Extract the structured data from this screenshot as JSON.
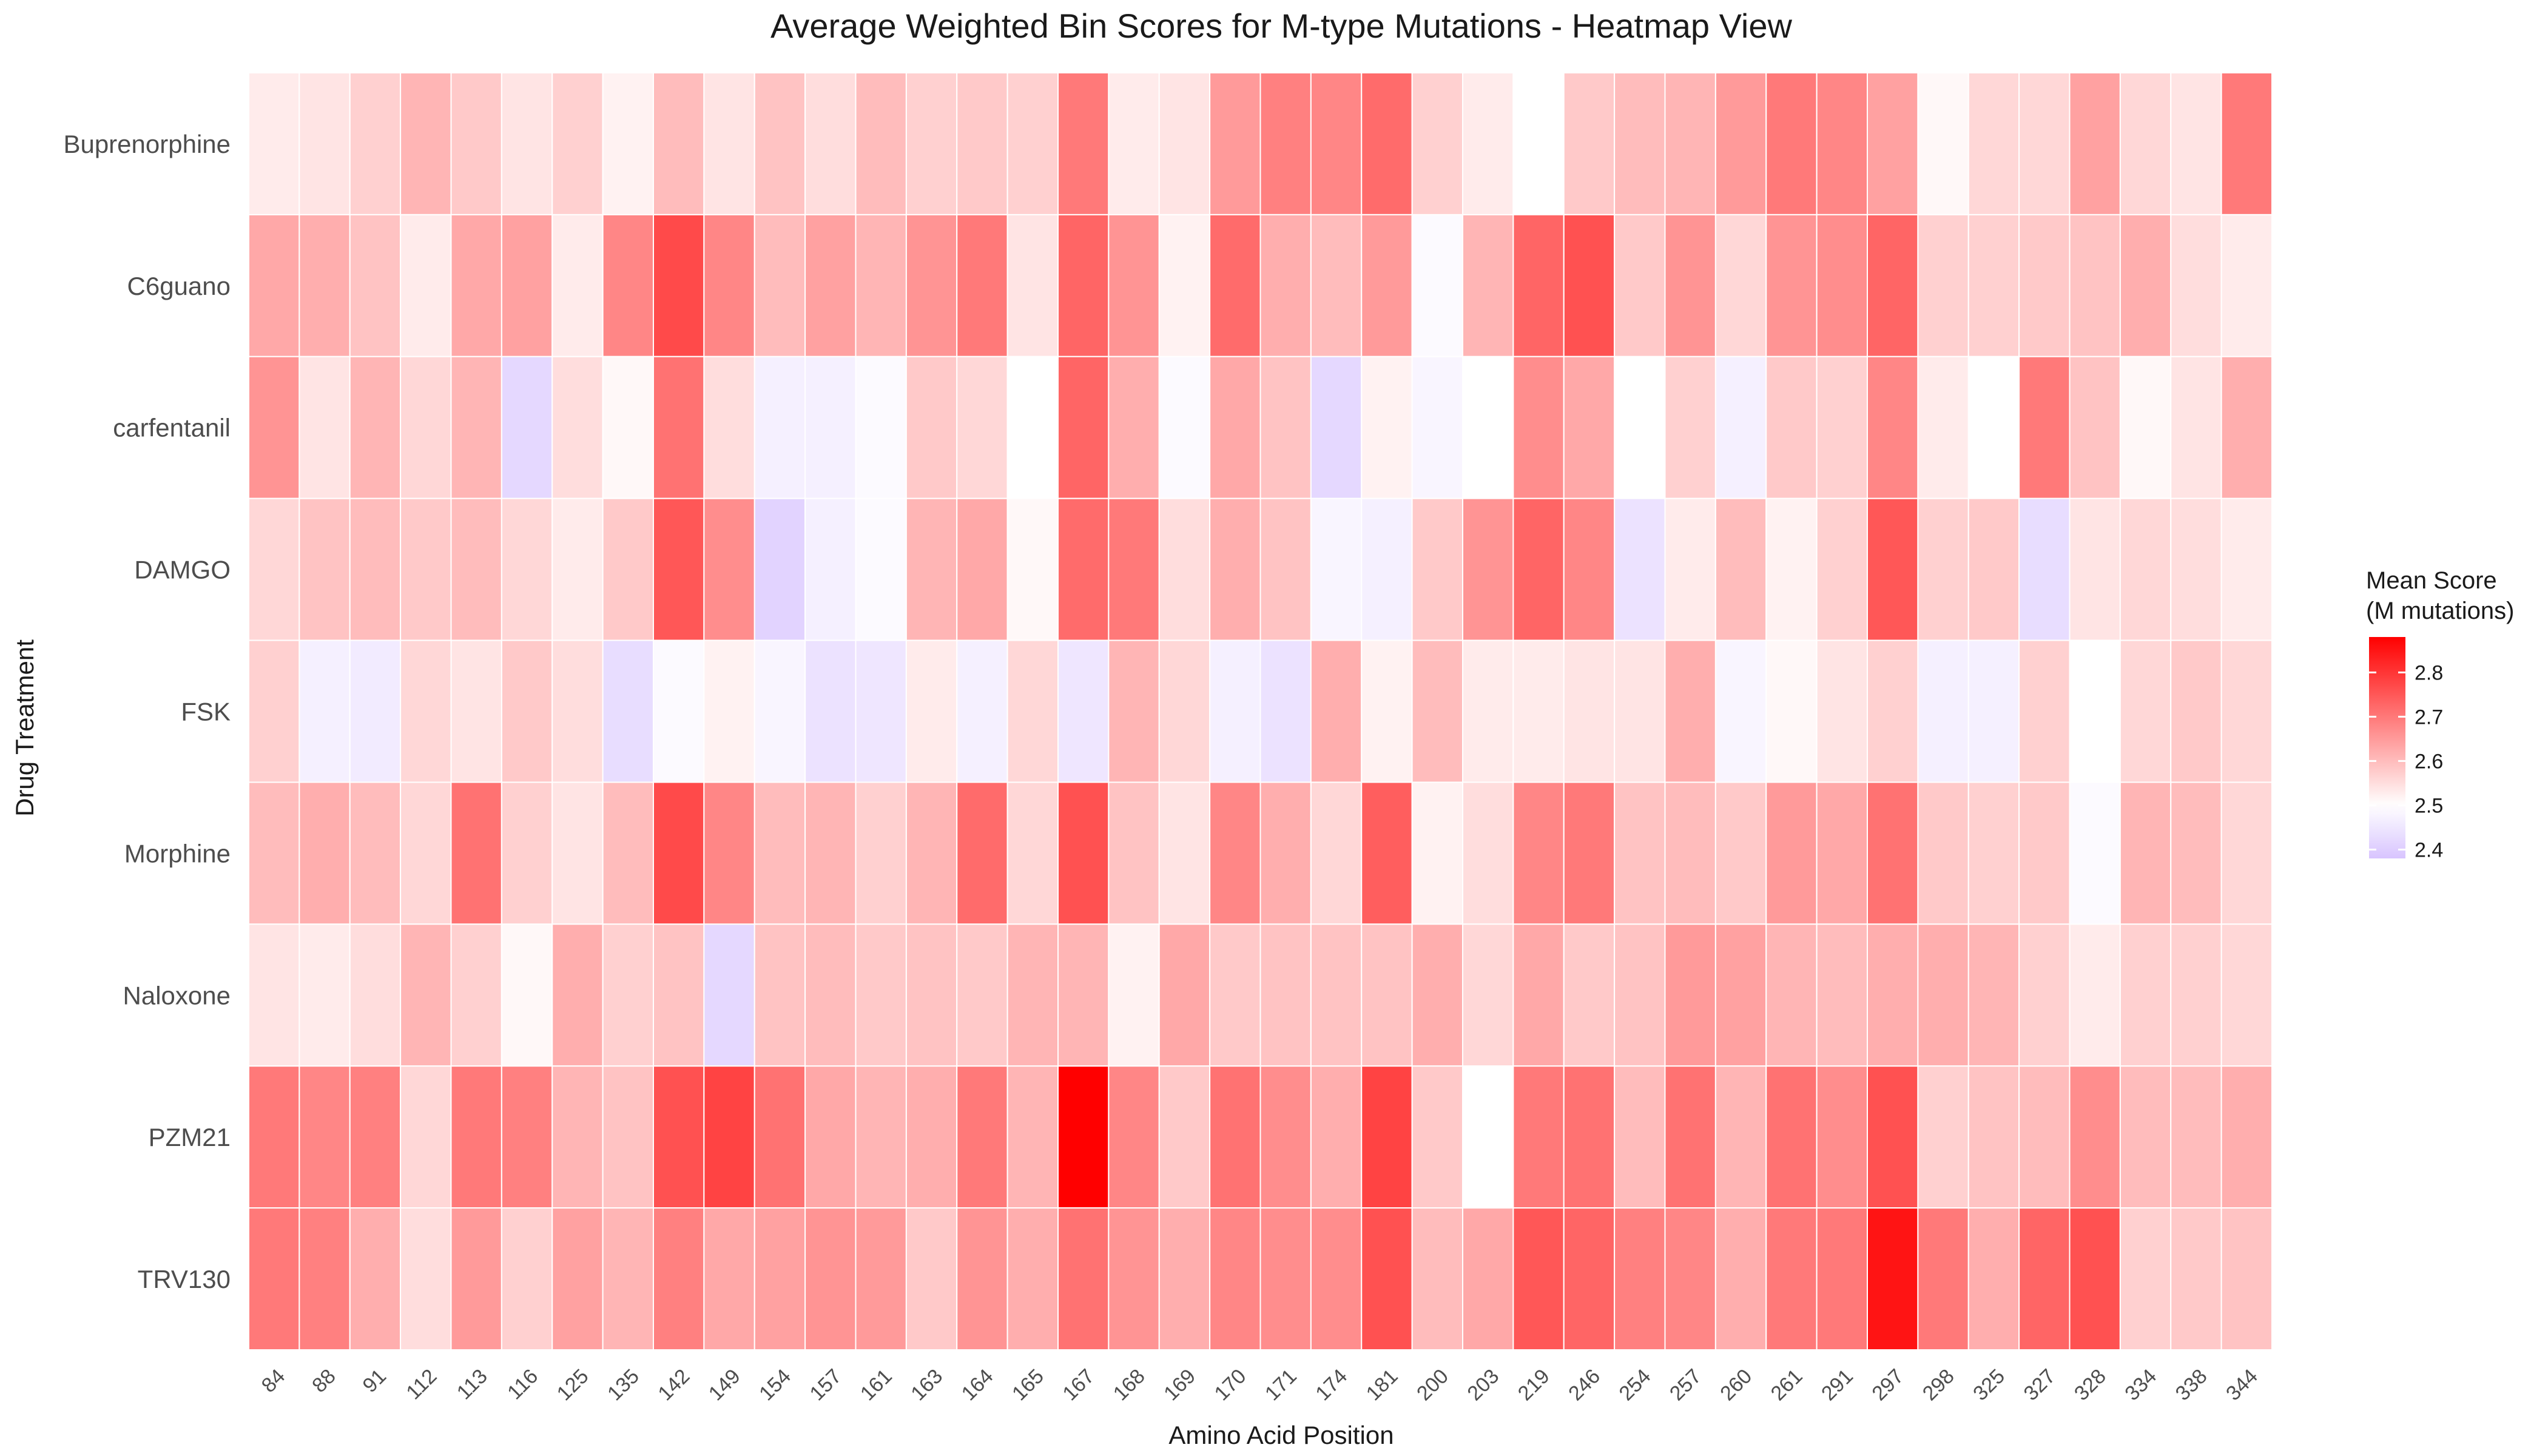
{
  "chart_data": {
    "type": "heatmap",
    "title": "Average Weighted Bin Scores for M-type Mutations - Heatmap View",
    "xlabel": "Amino Acid Position",
    "ylabel": "Drug Treatment",
    "rows": [
      "Buprenorphine",
      "C6guano",
      "carfentanil",
      "DAMGO",
      "FSK",
      "Morphine",
      "Naloxone",
      "PZM21",
      "TRV130"
    ],
    "columns": [
      "84",
      "88",
      "91",
      "112",
      "113",
      "116",
      "125",
      "135",
      "142",
      "149",
      "154",
      "157",
      "161",
      "163",
      "164",
      "165",
      "167",
      "168",
      "169",
      "170",
      "171",
      "174",
      "181",
      "200",
      "203",
      "219",
      "246",
      "254",
      "257",
      "260",
      "261",
      "291",
      "297",
      "298",
      "325",
      "327",
      "328",
      "334",
      "338",
      "344"
    ],
    "values": [
      [
        2.53,
        2.54,
        2.57,
        2.61,
        2.58,
        2.54,
        2.57,
        2.52,
        2.6,
        2.54,
        2.59,
        2.55,
        2.6,
        2.57,
        2.58,
        2.57,
        2.7,
        2.53,
        2.54,
        2.65,
        2.69,
        2.68,
        2.72,
        2.57,
        2.53,
        null,
        2.58,
        2.6,
        2.61,
        2.65,
        2.7,
        2.68,
        2.64,
        2.51,
        2.56,
        2.56,
        2.64,
        2.56,
        2.54,
        2.7
      ],
      [
        2.63,
        2.62,
        2.59,
        2.53,
        2.63,
        2.64,
        2.53,
        2.68,
        2.77,
        2.68,
        2.6,
        2.64,
        2.61,
        2.66,
        2.7,
        2.54,
        2.73,
        2.66,
        2.52,
        2.72,
        2.62,
        2.6,
        2.65,
        2.49,
        2.61,
        2.73,
        2.76,
        2.58,
        2.66,
        2.56,
        2.66,
        2.67,
        2.73,
        2.57,
        2.57,
        2.58,
        2.59,
        2.62,
        2.55,
        2.53
      ],
      [
        2.66,
        2.54,
        2.61,
        2.56,
        2.61,
        2.42,
        2.55,
        2.51,
        2.71,
        2.55,
        2.47,
        2.47,
        2.49,
        2.58,
        2.56,
        2.5,
        2.73,
        2.62,
        2.49,
        2.63,
        2.59,
        2.42,
        2.52,
        2.48,
        2.5,
        2.67,
        2.63,
        2.5,
        2.57,
        2.47,
        2.58,
        2.57,
        2.68,
        2.53,
        2.5,
        2.7,
        2.59,
        2.51,
        2.54,
        2.62
      ],
      [
        2.56,
        2.59,
        2.6,
        2.58,
        2.6,
        2.56,
        2.53,
        2.58,
        2.75,
        2.67,
        2.41,
        2.47,
        2.49,
        2.61,
        2.63,
        2.51,
        2.72,
        2.7,
        2.55,
        2.62,
        2.59,
        2.48,
        2.47,
        2.58,
        2.66,
        2.73,
        2.68,
        2.44,
        2.53,
        2.6,
        2.52,
        2.57,
        2.75,
        2.57,
        2.58,
        2.43,
        2.54,
        2.56,
        2.55,
        2.53
      ],
      [
        2.57,
        2.47,
        2.46,
        2.56,
        2.54,
        2.58,
        2.55,
        2.43,
        2.49,
        2.52,
        2.48,
        2.44,
        2.45,
        2.53,
        2.47,
        2.56,
        2.45,
        2.61,
        2.56,
        2.47,
        2.44,
        2.62,
        2.52,
        2.6,
        2.53,
        2.53,
        2.54,
        2.54,
        2.62,
        2.48,
        2.51,
        2.54,
        2.57,
        2.47,
        2.47,
        2.57,
        2.5,
        2.56,
        2.58,
        2.56
      ],
      [
        2.6,
        2.62,
        2.6,
        2.56,
        2.71,
        2.57,
        2.54,
        2.6,
        2.77,
        2.68,
        2.6,
        2.61,
        2.57,
        2.61,
        2.72,
        2.56,
        2.76,
        2.59,
        2.54,
        2.68,
        2.62,
        2.56,
        2.74,
        2.52,
        2.55,
        2.68,
        2.7,
        2.59,
        2.6,
        2.58,
        2.65,
        2.63,
        2.71,
        2.58,
        2.57,
        2.58,
        2.49,
        2.61,
        2.6,
        2.56
      ],
      [
        2.54,
        2.53,
        2.55,
        2.61,
        2.57,
        2.51,
        2.62,
        2.57,
        2.59,
        2.42,
        2.59,
        2.6,
        2.58,
        2.59,
        2.58,
        2.61,
        2.61,
        2.52,
        2.63,
        2.58,
        2.59,
        2.59,
        2.59,
        2.62,
        2.56,
        2.63,
        2.58,
        2.59,
        2.65,
        2.64,
        2.61,
        2.6,
        2.62,
        2.62,
        2.61,
        2.57,
        2.53,
        2.57,
        2.57,
        2.56
      ],
      [
        2.7,
        2.68,
        2.69,
        2.56,
        2.7,
        2.69,
        2.61,
        2.59,
        2.76,
        2.78,
        2.71,
        2.63,
        2.61,
        2.62,
        2.7,
        2.61,
        2.88,
        2.68,
        2.58,
        2.71,
        2.67,
        2.62,
        2.78,
        2.58,
        2.5,
        2.7,
        2.71,
        2.6,
        2.71,
        2.61,
        2.71,
        2.67,
        2.76,
        2.57,
        2.59,
        2.6,
        2.67,
        2.6,
        2.6,
        2.62
      ],
      [
        2.7,
        2.69,
        2.62,
        2.55,
        2.65,
        2.57,
        2.64,
        2.61,
        2.69,
        2.63,
        2.64,
        2.66,
        2.65,
        2.58,
        2.66,
        2.62,
        2.71,
        2.66,
        2.62,
        2.68,
        2.67,
        2.67,
        2.76,
        2.6,
        2.63,
        2.75,
        2.73,
        2.69,
        2.68,
        2.62,
        2.7,
        2.7,
        2.85,
        2.7,
        2.62,
        2.73,
        2.76,
        2.57,
        2.58,
        2.59
      ]
    ],
    "legend": {
      "title_line1": "Mean Score",
      "title_line2": "(M mutations)",
      "ticks": [
        "2.4",
        "2.5",
        "2.6",
        "2.7",
        "2.8"
      ],
      "min": 2.38,
      "max": 2.88,
      "midpoint": 2.5
    },
    "colors": {
      "low": "#d8c4ff",
      "mid": "#ffffff",
      "high": "#ff0000",
      "na": "#ffffff",
      "text": "#4d4d4d"
    },
    "legend_placement": "right",
    "grid": false
  }
}
